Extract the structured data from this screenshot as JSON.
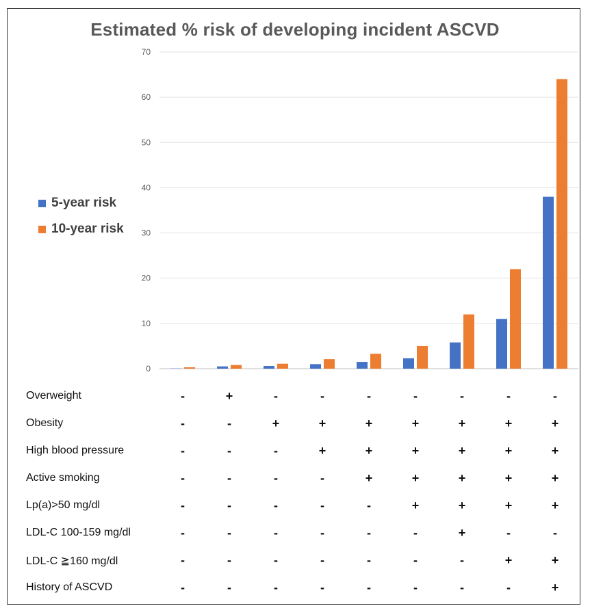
{
  "chart_data": {
    "type": "bar",
    "title": "Estimated % risk of developing incident ASCVD",
    "xlabel": "",
    "ylabel": "",
    "ylim": [
      0,
      70
    ],
    "yticks": [
      0,
      10,
      20,
      30,
      40,
      50,
      60,
      70
    ],
    "grid": true,
    "legend_position": "left",
    "series": [
      {
        "name": "5-year risk",
        "color": "#4472C4",
        "values": [
          0.05,
          0.5,
          0.6,
          1.0,
          1.5,
          2.3,
          5.8,
          11,
          38
        ]
      },
      {
        "name": "10-year risk",
        "color": "#ED7D31",
        "values": [
          0.3,
          0.8,
          1.1,
          2.1,
          3.3,
          5.0,
          12,
          22,
          64
        ]
      }
    ]
  },
  "risk_factors": [
    {
      "label": "Overweight",
      "values": [
        "-",
        "+",
        "-",
        "-",
        "-",
        "-",
        "-",
        "-",
        "-"
      ]
    },
    {
      "label": "Obesity",
      "values": [
        "-",
        "-",
        "+",
        "+",
        "+",
        "+",
        "+",
        "+",
        "+"
      ]
    },
    {
      "label": "High blood pressure",
      "values": [
        "-",
        "-",
        "-",
        "+",
        "+",
        "+",
        "+",
        "+",
        "+"
      ]
    },
    {
      "label": "Active smoking",
      "values": [
        "-",
        "-",
        "-",
        "-",
        "+",
        "+",
        "+",
        "+",
        "+"
      ]
    },
    {
      "label": "Lp(a)>50 mg/dl",
      "values": [
        "-",
        "-",
        "-",
        "-",
        "-",
        "+",
        "+",
        "+",
        "+"
      ]
    },
    {
      "label": "LDL-C 100-159 mg/dl",
      "values": [
        "-",
        "-",
        "-",
        "-",
        "-",
        "-",
        "+",
        "-",
        "-"
      ]
    },
    {
      "label": "LDL-C ≧160 mg/dl",
      "values": [
        "-",
        "-",
        "-",
        "-",
        "-",
        "-",
        "-",
        "+",
        "+"
      ]
    },
    {
      "label": "History of ASCVD",
      "values": [
        "-",
        "-",
        "-",
        "-",
        "-",
        "-",
        "-",
        "-",
        "+"
      ]
    }
  ]
}
